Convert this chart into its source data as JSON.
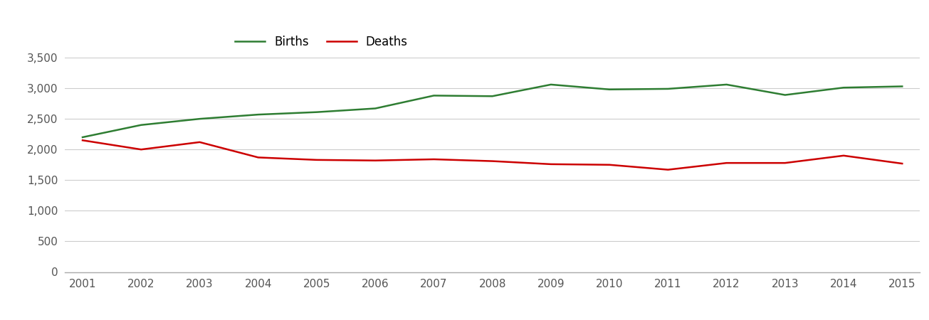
{
  "years": [
    2001,
    2002,
    2003,
    2004,
    2005,
    2006,
    2007,
    2008,
    2009,
    2010,
    2011,
    2012,
    2013,
    2014,
    2015
  ],
  "births": [
    2200,
    2400,
    2500,
    2570,
    2610,
    2670,
    2880,
    2870,
    3060,
    2980,
    2990,
    3060,
    2890,
    3010,
    3030
  ],
  "deaths": [
    2150,
    2000,
    2120,
    1870,
    1830,
    1820,
    1840,
    1810,
    1760,
    1750,
    1670,
    1780,
    1780,
    1900,
    1770
  ],
  "births_color": "#2e7d32",
  "deaths_color": "#cc0000",
  "background_color": "#ffffff",
  "grid_color": "#cccccc",
  "line_width": 1.8,
  "ylim": [
    0,
    3500
  ],
  "yticks": [
    0,
    500,
    1000,
    1500,
    2000,
    2500,
    3000,
    3500
  ],
  "legend_labels": [
    "Births",
    "Deaths"
  ],
  "xlabel": "",
  "ylabel": "",
  "tick_fontsize": 11,
  "legend_fontsize": 12
}
